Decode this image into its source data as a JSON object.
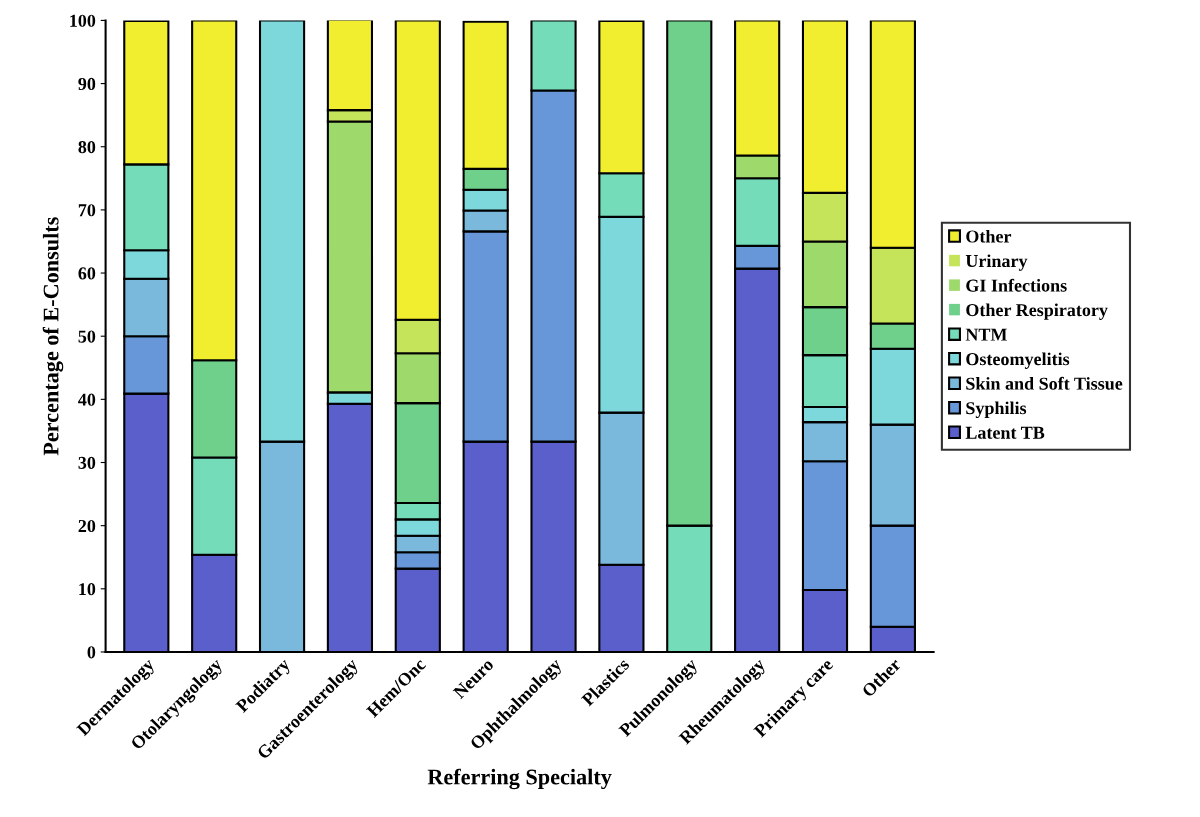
{
  "chart_data": {
    "type": "bar",
    "stacked": true,
    "xlabel": "Referring Specialty",
    "ylabel": "Percentage of E-Consults",
    "categories": [
      "Dermatology",
      "Otolaryngology",
      "Podiatry",
      "Gastroenterology",
      "Hem/Onc",
      "Neuro",
      "Ophthalmology",
      "Plastics",
      "Pulmonology",
      "Rheumatology",
      "Primary care",
      "Other"
    ],
    "ylim": [
      0,
      100
    ],
    "yticks": [
      0,
      10,
      20,
      30,
      40,
      50,
      60,
      70,
      80,
      90,
      100
    ],
    "grid": false,
    "legend": "right",
    "series": [
      {
        "name": "Latent TB",
        "color": "#5a5fcc",
        "values": [
          40.9,
          15.4,
          0,
          39.3,
          13.2,
          33.3,
          33.3,
          13.8,
          0,
          60.7,
          9.8,
          4
        ]
      },
      {
        "name": "Syphilis",
        "color": "#6797d9",
        "values": [
          9.1,
          0,
          0,
          0,
          2.6,
          33.3,
          55.6,
          0,
          0,
          3.6,
          20.4,
          16
        ]
      },
      {
        "name": "Skin and Soft Tissue",
        "color": "#7ab8dc",
        "values": [
          9.1,
          0,
          33.3,
          0,
          2.6,
          3.3,
          0,
          24.1,
          0,
          0,
          6.2,
          16
        ]
      },
      {
        "name": "Osteomyelitis",
        "color": "#7dd8dc",
        "values": [
          4.5,
          0,
          66.7,
          1.8,
          2.6,
          3.3,
          0,
          31.0,
          0,
          0,
          2.4,
          12
        ]
      },
      {
        "name": "NTM",
        "color": "#74dcb8",
        "values": [
          13.6,
          15.4,
          0,
          0,
          2.6,
          0,
          11.1,
          6.9,
          20,
          10.7,
          8.2,
          0
        ]
      },
      {
        "name": "Other Respiratory",
        "color": "#6fd08c",
        "values": [
          0,
          15.4,
          0,
          0,
          15.8,
          3.3,
          0,
          0,
          80,
          0,
          7.6,
          4
        ]
      },
      {
        "name": "GI Infections",
        "color": "#9ed96c",
        "values": [
          0,
          0,
          0,
          42.9,
          7.9,
          0,
          0,
          0,
          0,
          3.6,
          10.4,
          0
        ]
      },
      {
        "name": "Urinary",
        "color": "#c6e45a",
        "values": [
          0,
          0,
          0,
          1.8,
          5.3,
          0,
          0,
          0,
          0,
          0,
          7.7,
          12
        ]
      },
      {
        "name": "Other",
        "color": "#f0ee2e",
        "values": [
          22.7,
          53.8,
          0,
          14.3,
          47.4,
          23.3,
          0,
          24.1,
          0,
          21.4,
          27.3,
          36
        ]
      }
    ]
  }
}
